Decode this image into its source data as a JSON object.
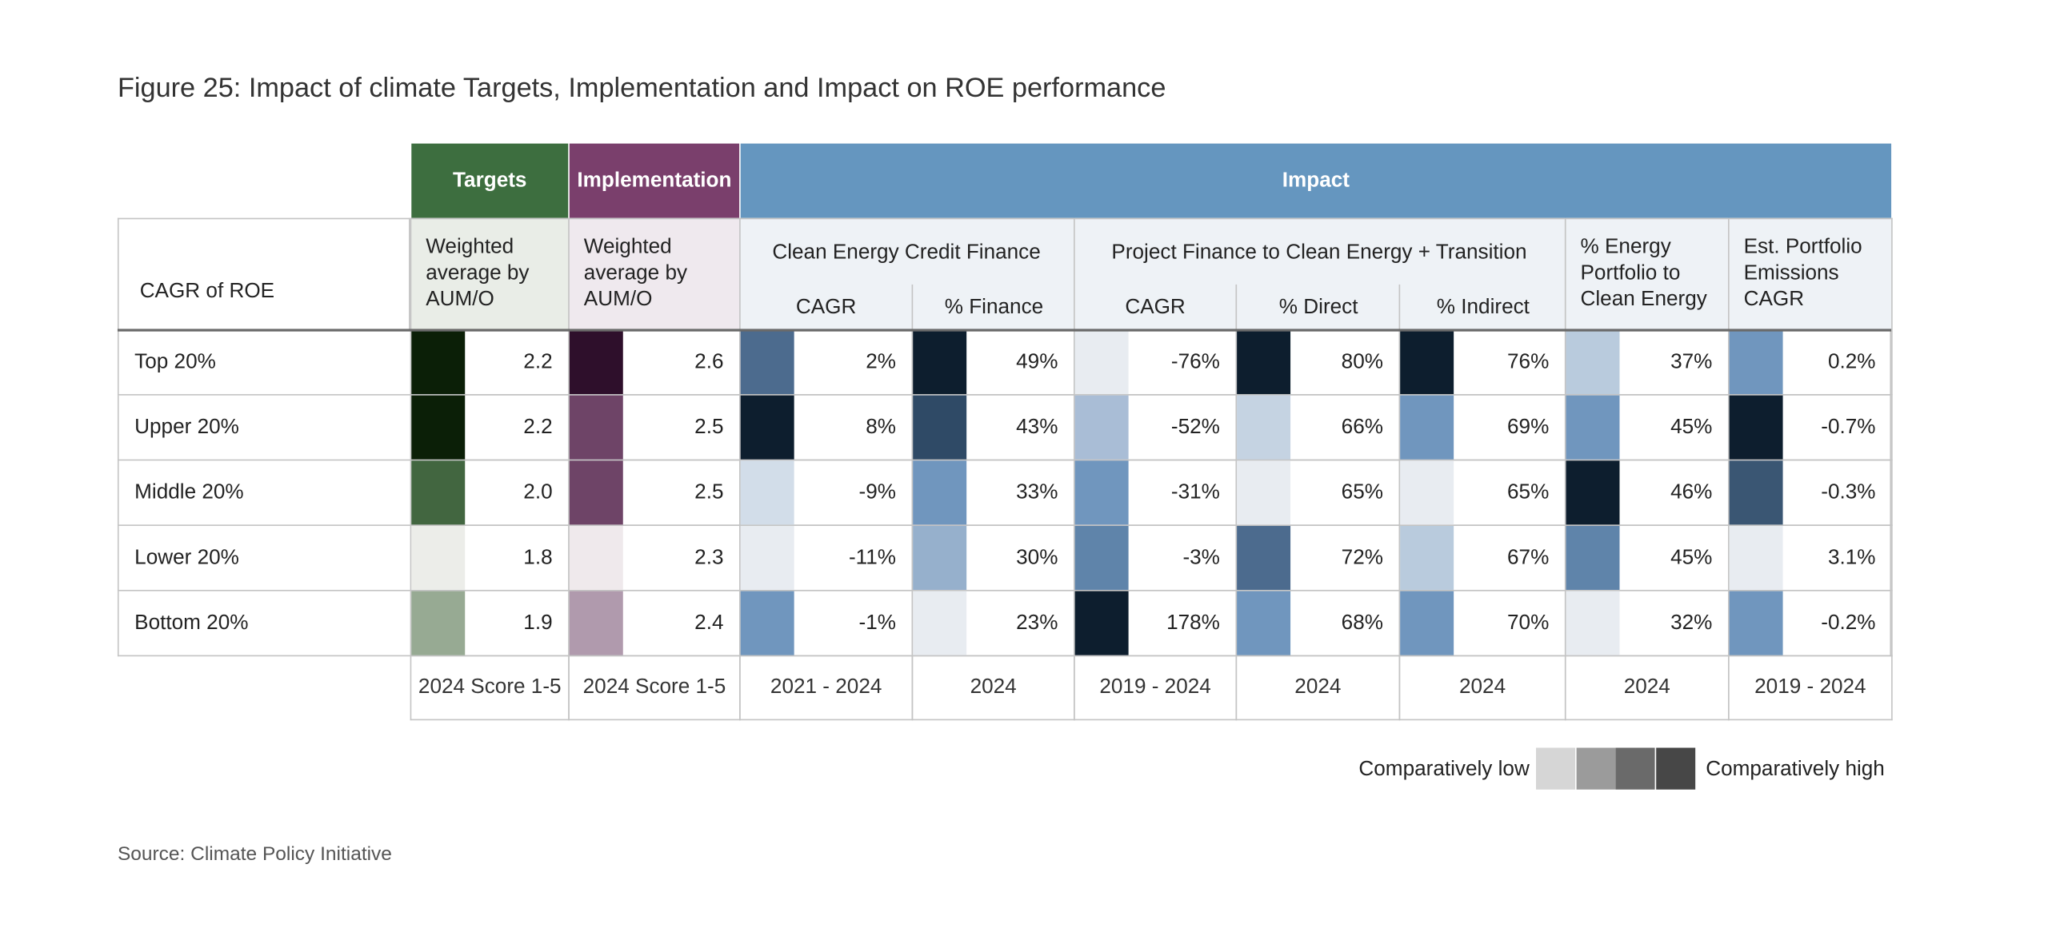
{
  "title": "Figure 25: Impact of climate Targets, Implementation and Impact on ROE performance",
  "row_header": "CAGR of ROE",
  "groups": [
    {
      "label": "Targets",
      "color": "#3d6e3f",
      "sub_color": "#e9ede7",
      "headers": [
        {
          "label": "Weighted average by AUM/O"
        }
      ]
    },
    {
      "label": "Implementation",
      "color": "#7a3f6c",
      "sub_color": "#efe9ee",
      "headers": [
        {
          "label": "Weighted average by AUM/O"
        }
      ]
    },
    {
      "label": "Impact",
      "color": "#6596bf",
      "sub_color": "#eef2f6",
      "headers": [
        {
          "label": "Clean Energy Credit Finance",
          "subheaders": [
            "CAGR",
            "% Finance"
          ]
        },
        {
          "label": "Project Finance to Clean Energy + Transition",
          "subheaders": [
            "CAGR",
            "% Direct",
            "% Indirect"
          ]
        },
        {
          "label": "% Energy Portfolio to Clean Energy"
        },
        {
          "label": "Est. Portfolio Emissions CAGR"
        }
      ]
    }
  ],
  "rows": [
    {
      "label": "Top 20%",
      "cells": [
        {
          "value": "2.2",
          "color": "#0b1f07"
        },
        {
          "value": "2.6",
          "color": "#2e0f2b"
        },
        {
          "value": "2%",
          "color": "#4c6b8e"
        },
        {
          "value": "49%",
          "color": "#0d1e2e"
        },
        {
          "value": "-76%",
          "color": "#e8ecf1"
        },
        {
          "value": "80%",
          "color": "#0d1e2e"
        },
        {
          "value": "76%",
          "color": "#0d1e2e"
        },
        {
          "value": "37%",
          "color": "#b9cbdd"
        },
        {
          "value": "0.2%",
          "color": "#7096be"
        }
      ]
    },
    {
      "label": "Upper 20%",
      "cells": [
        {
          "value": "2.2",
          "color": "#0b1f07"
        },
        {
          "value": "2.5",
          "color": "#6e4467"
        },
        {
          "value": "8%",
          "color": "#0d1e2e"
        },
        {
          "value": "43%",
          "color": "#2f4a66"
        },
        {
          "value": "-52%",
          "color": "#a9bdd6"
        },
        {
          "value": "66%",
          "color": "#c5d3e2"
        },
        {
          "value": "69%",
          "color": "#7096be"
        },
        {
          "value": "45%",
          "color": "#7096be"
        },
        {
          "value": "-0.7%",
          "color": "#0d1e2e"
        }
      ]
    },
    {
      "label": "Middle 20%",
      "cells": [
        {
          "value": "2.0",
          "color": "#426640"
        },
        {
          "value": "2.5",
          "color": "#6e4467"
        },
        {
          "value": "-9%",
          "color": "#d2dde9"
        },
        {
          "value": "33%",
          "color": "#7096be"
        },
        {
          "value": "-31%",
          "color": "#7096be"
        },
        {
          "value": "65%",
          "color": "#e8ecf1"
        },
        {
          "value": "65%",
          "color": "#e8ecf1"
        },
        {
          "value": "46%",
          "color": "#0d1e2e"
        },
        {
          "value": "-0.3%",
          "color": "#3a5673"
        }
      ]
    },
    {
      "label": "Lower 20%",
      "cells": [
        {
          "value": "1.8",
          "color": "#ecede9"
        },
        {
          "value": "2.3",
          "color": "#efe9ec"
        },
        {
          "value": "-11%",
          "color": "#e8ecf1"
        },
        {
          "value": "30%",
          "color": "#96b0cc"
        },
        {
          "value": "-3%",
          "color": "#5f84aa"
        },
        {
          "value": "72%",
          "color": "#4c6b8e"
        },
        {
          "value": "67%",
          "color": "#b9cbdd"
        },
        {
          "value": "45%",
          "color": "#5f84aa"
        },
        {
          "value": "3.1%",
          "color": "#e8ecf1"
        }
      ]
    },
    {
      "label": "Bottom 20%",
      "cells": [
        {
          "value": "1.9",
          "color": "#97aa93"
        },
        {
          "value": "2.4",
          "color": "#b09aad"
        },
        {
          "value": "-1%",
          "color": "#7096be"
        },
        {
          "value": "23%",
          "color": "#e8ecf1"
        },
        {
          "value": "178%",
          "color": "#0d1e2e"
        },
        {
          "value": "68%",
          "color": "#7096be"
        },
        {
          "value": "70%",
          "color": "#7096be"
        },
        {
          "value": "32%",
          "color": "#e8ecf1"
        },
        {
          "value": "-0.2%",
          "color": "#7096be"
        }
      ]
    }
  ],
  "footer": [
    "2024 Score 1-5",
    "2024 Score 1-5",
    "2021 - 2024",
    "2024",
    "2019 - 2024",
    "2024",
    "2024",
    "2024",
    "2019 - 2024"
  ],
  "legend": {
    "low": "Comparatively low",
    "high": "Comparatively high",
    "colors": [
      "#d6d6d6",
      "#9b9b9b",
      "#6a6a6a",
      "#474747"
    ]
  },
  "source": "Source: Climate Policy Initiative"
}
